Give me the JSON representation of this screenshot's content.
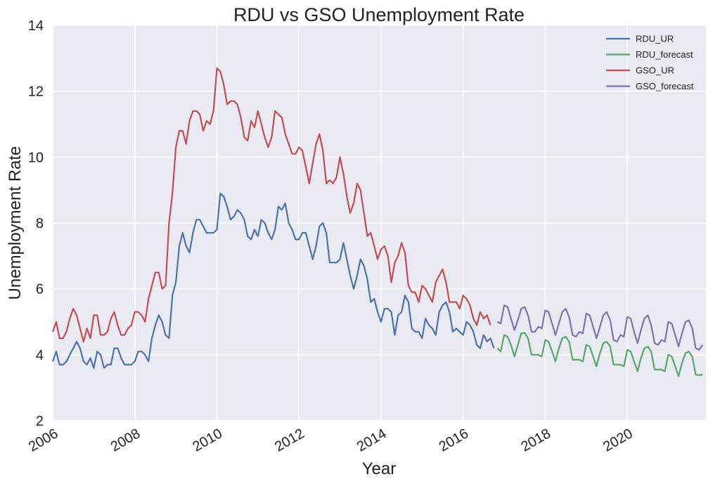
{
  "chart_data": {
    "type": "line",
    "title": "RDU vs GSO Unemployment Rate",
    "xlabel": "Year",
    "ylabel": "Unemployment Rate",
    "xlim": [
      2006.0,
      2021.917
    ],
    "ylim": [
      2,
      14
    ],
    "x_ticks": [
      2006,
      2008,
      2010,
      2012,
      2014,
      2016,
      2018,
      2020
    ],
    "y_ticks": [
      2,
      4,
      6,
      8,
      10,
      12,
      14
    ],
    "grid": true,
    "legend_position": "top-right",
    "colors": {
      "background": "#eaeaf2",
      "grid": "#ffffff",
      "RDU_UR": "#4c72b0",
      "RDU_forecast": "#55a868",
      "GSO_UR": "#c44e52",
      "GSO_forecast": "#8172b2"
    },
    "series": [
      {
        "name": "RDU_UR",
        "x_start": 2006.0,
        "x_step": 0.08333,
        "values": [
          3.8,
          4.1,
          3.7,
          3.7,
          3.8,
          4.0,
          4.2,
          4.4,
          4.2,
          3.8,
          3.7,
          3.9,
          3.6,
          4.1,
          4.0,
          3.6,
          3.7,
          3.7,
          4.2,
          4.2,
          3.9,
          3.7,
          3.7,
          3.7,
          3.8,
          4.1,
          4.1,
          4.0,
          3.8,
          4.5,
          4.9,
          5.2,
          5.0,
          4.6,
          4.5,
          5.8,
          6.2,
          7.3,
          7.7,
          7.3,
          7.1,
          7.7,
          8.1,
          8.1,
          7.9,
          7.7,
          7.7,
          7.7,
          7.8,
          8.9,
          8.8,
          8.5,
          8.1,
          8.2,
          8.4,
          8.3,
          8.1,
          7.6,
          7.5,
          7.8,
          7.6,
          8.1,
          8.0,
          7.7,
          7.5,
          7.8,
          8.5,
          8.4,
          8.6,
          8.0,
          7.8,
          7.5,
          7.5,
          7.7,
          7.7,
          7.3,
          6.9,
          7.3,
          7.9,
          8.0,
          7.7,
          6.8,
          6.8,
          6.8,
          6.9,
          7.4,
          6.9,
          6.4,
          6.0,
          6.4,
          6.9,
          6.7,
          6.3,
          5.6,
          5.7,
          5.3,
          5.0,
          5.4,
          5.4,
          5.3,
          4.6,
          5.2,
          5.3,
          5.8,
          5.6,
          4.8,
          4.7,
          4.7,
          4.5,
          5.1,
          4.9,
          4.8,
          4.6,
          5.3,
          5.5,
          5.6,
          5.3,
          4.7,
          4.8,
          4.7,
          4.6,
          5.0,
          4.9,
          4.7,
          4.3,
          4.2,
          4.6,
          4.4,
          4.5,
          4.2
        ]
      },
      {
        "name": "RDU_forecast",
        "x_start": 2016.833,
        "x_step": 0.08333,
        "values": [
          4.2,
          4.1,
          4.6,
          4.55,
          4.3,
          3.95,
          4.3,
          4.65,
          4.67,
          4.5,
          4.0,
          4.0,
          4.0,
          3.95,
          4.45,
          4.4,
          4.1,
          3.8,
          4.2,
          4.5,
          4.55,
          4.4,
          3.85,
          3.85,
          3.85,
          3.8,
          4.3,
          4.25,
          3.95,
          3.65,
          4.05,
          4.35,
          4.4,
          4.25,
          3.7,
          3.7,
          3.7,
          3.65,
          4.15,
          4.1,
          3.8,
          3.5,
          3.9,
          4.2,
          4.25,
          4.1,
          3.55,
          3.55,
          3.55,
          3.5,
          4.0,
          3.95,
          3.65,
          3.35,
          3.75,
          4.05,
          4.1,
          3.95,
          3.4,
          3.38,
          3.4
        ]
      },
      {
        "name": "GSO_UR",
        "x_start": 2006.0,
        "x_step": 0.08333,
        "values": [
          4.7,
          5.0,
          4.5,
          4.5,
          4.7,
          5.1,
          5.4,
          5.2,
          4.8,
          4.4,
          4.8,
          4.5,
          5.2,
          5.2,
          4.6,
          4.6,
          4.7,
          5.1,
          5.3,
          4.9,
          4.6,
          4.6,
          4.8,
          4.9,
          5.3,
          5.3,
          5.2,
          5.0,
          5.7,
          6.1,
          6.5,
          6.5,
          6.0,
          6.1,
          8.0,
          8.9,
          10.3,
          10.8,
          10.8,
          10.4,
          11.1,
          11.4,
          11.4,
          11.3,
          10.8,
          11.1,
          11.0,
          11.4,
          12.7,
          12.6,
          12.2,
          11.6,
          11.7,
          11.7,
          11.6,
          11.2,
          10.6,
          10.5,
          11.1,
          10.9,
          11.4,
          11.0,
          10.6,
          10.3,
          10.6,
          11.4,
          11.3,
          11.2,
          10.7,
          10.4,
          10.1,
          10.1,
          10.3,
          10.2,
          9.7,
          9.2,
          9.8,
          10.4,
          10.7,
          10.2,
          9.2,
          9.3,
          9.2,
          9.4,
          10.0,
          9.5,
          8.8,
          8.3,
          8.6,
          9.2,
          9.0,
          8.3,
          7.6,
          7.7,
          7.3,
          6.9,
          7.2,
          7.3,
          7.0,
          6.2,
          6.8,
          7.0,
          7.4,
          7.1,
          6.1,
          5.9,
          5.9,
          5.6,
          6.1,
          6.0,
          5.8,
          5.6,
          6.2,
          6.4,
          6.6,
          6.2,
          5.6,
          5.6,
          5.6,
          5.4,
          5.8,
          5.7,
          5.5,
          5.1,
          4.9,
          5.3,
          5.1,
          5.2,
          4.9
        ]
      },
      {
        "name": "GSO_forecast",
        "x_start": 2016.833,
        "x_step": 0.08333,
        "values": [
          5.0,
          4.95,
          5.5,
          5.45,
          5.1,
          4.75,
          5.05,
          5.4,
          5.45,
          5.2,
          4.7,
          4.7,
          4.85,
          4.8,
          5.35,
          5.3,
          4.95,
          4.6,
          4.95,
          5.3,
          5.4,
          5.15,
          4.6,
          4.55,
          4.7,
          4.65,
          5.25,
          5.2,
          4.85,
          4.5,
          4.85,
          5.2,
          5.3,
          5.05,
          4.45,
          4.4,
          4.6,
          4.55,
          5.15,
          5.1,
          4.7,
          4.35,
          4.75,
          5.1,
          5.2,
          4.9,
          4.35,
          4.3,
          4.45,
          4.4,
          5.0,
          4.95,
          4.6,
          4.25,
          4.65,
          5.0,
          5.05,
          4.8,
          4.2,
          4.15,
          4.3
        ]
      }
    ]
  }
}
